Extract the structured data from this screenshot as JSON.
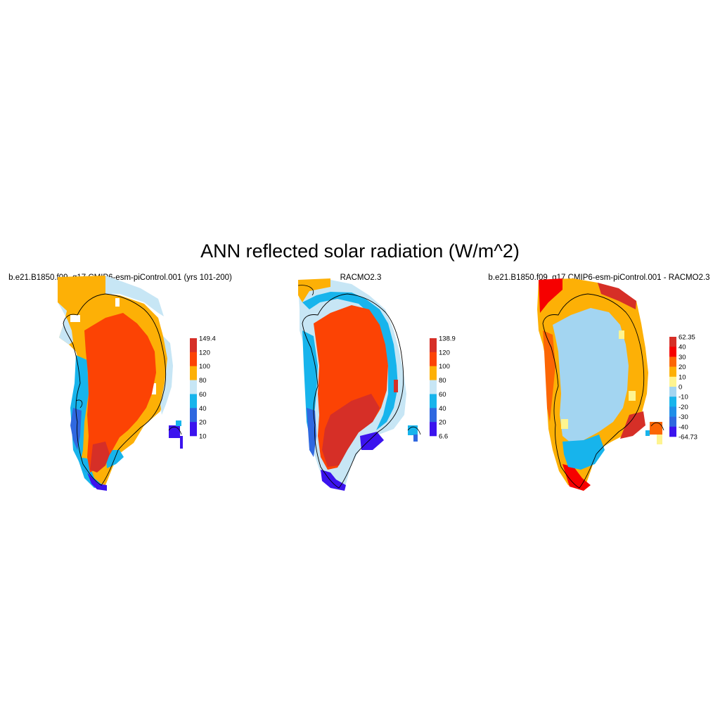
{
  "title": "ANN reflected solar radiation (W/m^2)",
  "panels": [
    {
      "title": "b.e21.B1850.f09_g17.CMIP6-esm-piControl.001 (yrs 101-200)",
      "colorbar": {
        "labels": [
          "149.4",
          "120",
          "100",
          "80",
          "60",
          "40",
          "20",
          "10"
        ],
        "colors": [
          "#d62f27",
          "#fc4304",
          "#fdb006",
          "#c7e6f5",
          "#17b4ec",
          "#2f68e0",
          "#3b13ee"
        ]
      }
    },
    {
      "title": "RACMO2.3",
      "colorbar": {
        "labels": [
          "138.9",
          "120",
          "100",
          "80",
          "60",
          "40",
          "20",
          "6.6"
        ],
        "colors": [
          "#d62f27",
          "#fc4304",
          "#fdb006",
          "#c7e6f5",
          "#17b4ec",
          "#2f68e0",
          "#3b13ee"
        ]
      }
    },
    {
      "title": "b.e21.B1850.f09_g17.CMIP6-esm-piControl.001 - RACMO2.3",
      "colorbar": {
        "labels": [
          "62.35",
          "40",
          "30",
          "20",
          "10",
          "0",
          "-10",
          "-20",
          "-30",
          "-40",
          "-64.73"
        ],
        "colors": [
          "#d62f27",
          "#f60000",
          "#fc6604",
          "#fdb006",
          "#fef490",
          "#a3d5f1",
          "#17b4ec",
          "#1f8ee8",
          "#2f68e0",
          "#3b13ee"
        ]
      }
    }
  ]
}
